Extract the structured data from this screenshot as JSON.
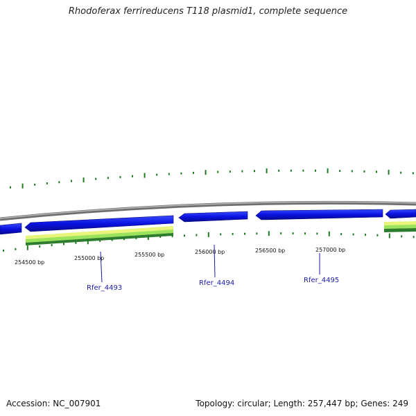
{
  "title": "Rhodoferax ferrireducens T118 plasmid1, complete sequence",
  "footer": {
    "accession": "Accession: NC_007901",
    "summary": "Topology: circular; Length: 257,447 bp; Genes: 249"
  },
  "colors": {
    "gene_forward": "#0a12e0",
    "gene_edge": "#04087a",
    "backbone": "#8a8a8a",
    "tick": "#1e7a1e",
    "label": "#1a1aa8",
    "feature_dark": "#2e8b2e",
    "feature_light": "#9be35a",
    "feature_yellow": "#e8f57a"
  },
  "scale_ticks": [
    {
      "label": "254500 bp"
    },
    {
      "label": "255000 bp"
    },
    {
      "label": "255500 bp"
    },
    {
      "label": "256000 bp"
    },
    {
      "label": "256500 bp"
    },
    {
      "label": "257000 bp"
    }
  ],
  "genes": [
    {
      "name": "Rfer_4493"
    },
    {
      "name": "Rfer_4494"
    },
    {
      "name": "Rfer_4495"
    }
  ]
}
